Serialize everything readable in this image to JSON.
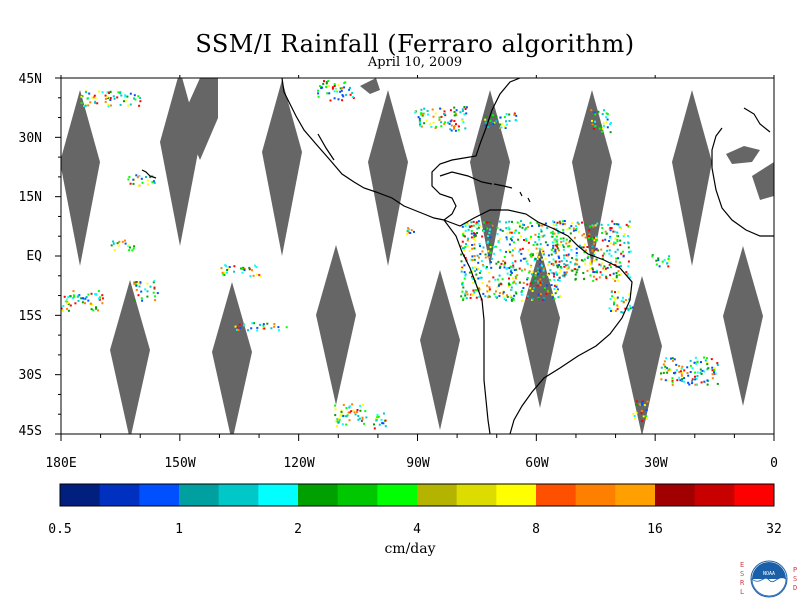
{
  "title": "SSM/I Rainfall (Ferraro algorithm)",
  "date": "April 10, 2009",
  "map": {
    "lon_range": [
      180,
      360
    ],
    "lat_range": [
      -45,
      45
    ],
    "lat_labels": [
      "45N",
      "30N",
      "15N",
      "EQ",
      "15S",
      "30S",
      "45S"
    ],
    "lon_labels": [
      "180E",
      "150W",
      "120W",
      "90W",
      "60W",
      "30W",
      "0"
    ],
    "swath_gap_color": "#666666",
    "coastline_color": "#000000"
  },
  "colorbar": {
    "tick_labels": [
      "0.5",
      "1",
      "2",
      "4",
      "8",
      "16",
      "32"
    ],
    "unit_label": "cm/day",
    "colors": [
      "#001f7f",
      "#0030c0",
      "#0050ff",
      "#00a0a0",
      "#00c8c8",
      "#00ffff",
      "#00a000",
      "#00c800",
      "#00ff00",
      "#b4b400",
      "#dcdc00",
      "#ffff00",
      "#ff5000",
      "#ff8000",
      "#ffa000",
      "#a00000",
      "#c80000",
      "#ff0000"
    ]
  },
  "logo": {
    "left_letters": "ESRL",
    "right_letters": "PSD",
    "emblem": "NOAA",
    "left_color": "#d04040",
    "right_color": "#d04040"
  }
}
